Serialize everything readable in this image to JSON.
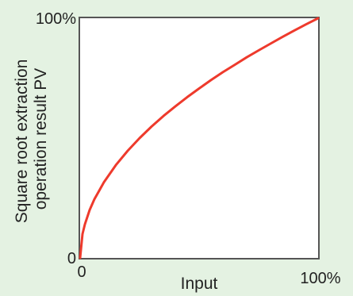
{
  "chart_data": {
    "type": "line",
    "title": "",
    "xlabel": "Input",
    "ylabel_lines": [
      "Square root extraction",
      "operation result PV"
    ],
    "xlim": [
      0,
      100
    ],
    "ylim": [
      0,
      100
    ],
    "x_ticks": [
      "0",
      "100%"
    ],
    "y_ticks": [
      "0",
      "100%"
    ],
    "grid": false,
    "series": [
      {
        "color": "#ee3a2c",
        "x": [
          0,
          1,
          2,
          4,
          6,
          8,
          10,
          15,
          20,
          25,
          30,
          35,
          40,
          45,
          50,
          55,
          60,
          65,
          70,
          75,
          80,
          85,
          90,
          95,
          100
        ],
        "y": [
          0,
          10,
          14,
          20,
          24.5,
          28,
          31.6,
          38.7,
          44.7,
          50,
          54.8,
          59.2,
          63.2,
          67.1,
          70.7,
          74.2,
          77.5,
          80.6,
          83.7,
          86.6,
          89.4,
          92.2,
          94.9,
          97.5,
          100
        ]
      }
    ]
  },
  "colors": {
    "background": "#e4f2e2",
    "plot_background": "#ffffff",
    "axes": "#555555",
    "curve": "#ee3a2c"
  }
}
